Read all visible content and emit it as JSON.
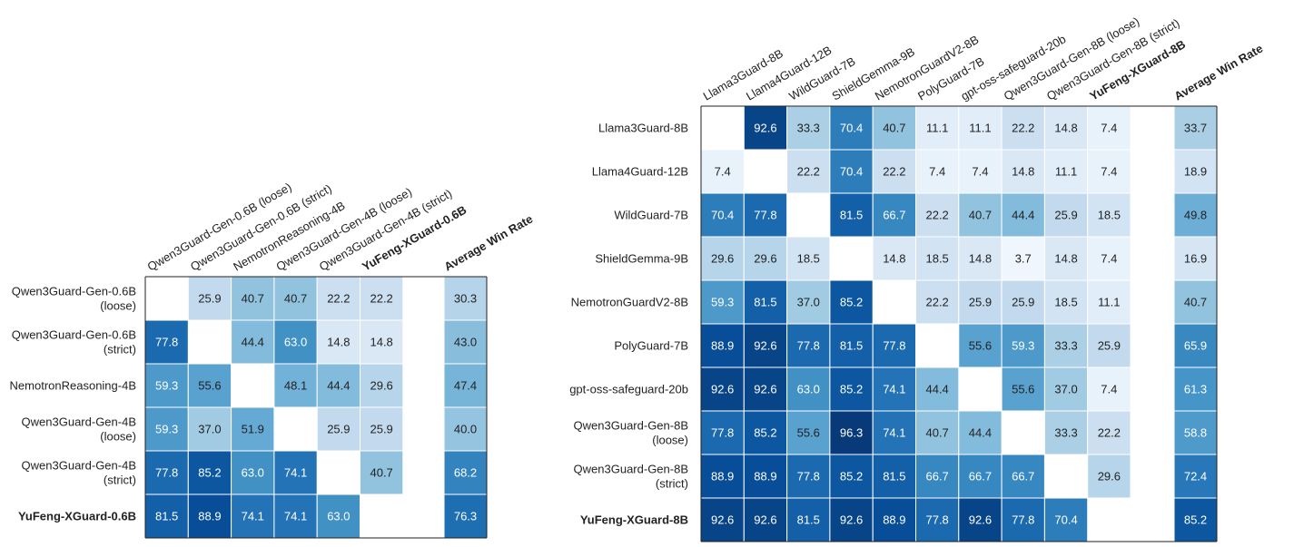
{
  "chart_data": [
    {
      "type": "heatmap",
      "rows": [
        "Qwen3Guard-Gen-0.6B\n(loose)",
        "Qwen3Guard-Gen-0.6B\n(strict)",
        "NemotronReasoning-4B",
        "Qwen3Guard-Gen-4B\n(loose)",
        "Qwen3Guard-Gen-4B\n(strict)",
        "YuFeng-XGuard-0.6B"
      ],
      "columns": [
        "Qwen3Guard-Gen-0.6B (loose)",
        "Qwen3Guard-Gen-0.6B (strict)",
        "NemotronReasoning-4B",
        "Qwen3Guard-Gen-4B (loose)",
        "Qwen3Guard-Gen-4B (strict)",
        "YuFeng-XGuard-0.6B"
      ],
      "bold_label": "YuFeng-XGuard-0.6B",
      "values": [
        [
          null,
          25.9,
          40.7,
          40.7,
          22.2,
          22.2
        ],
        [
          77.8,
          null,
          44.4,
          63.0,
          14.8,
          14.8
        ],
        [
          59.3,
          55.6,
          null,
          48.1,
          44.4,
          29.6
        ],
        [
          59.3,
          37.0,
          51.9,
          null,
          25.9,
          25.9
        ],
        [
          77.8,
          85.2,
          63.0,
          74.1,
          null,
          40.7
        ],
        [
          81.5,
          88.9,
          74.1,
          74.1,
          63.0,
          null
        ]
      ],
      "average_label": "Average Win Rate",
      "average": [
        30.3,
        43.0,
        47.4,
        40.0,
        68.2,
        76.3
      ],
      "colormap": "Blues",
      "range": [
        0,
        100
      ]
    },
    {
      "type": "heatmap",
      "rows": [
        "Llama3Guard-8B",
        "Llama4Guard-12B",
        "WildGuard-7B",
        "ShieldGemma-9B",
        "NemotronGuardV2-8B",
        "PolyGuard-7B",
        "gpt-oss-safeguard-20b",
        "Qwen3Guard-Gen-8B\n(loose)",
        "Qwen3Guard-Gen-8B\n(strict)",
        "YuFeng-XGuard-8B"
      ],
      "columns": [
        "Llama3Guard-8B",
        "Llama4Guard-12B",
        "WildGuard-7B",
        "ShieldGemma-9B",
        "NemotronGuardV2-8B",
        "PolyGuard-7B",
        "gpt-oss-safeguard-20b",
        "Qwen3Guard-Gen-8B (loose)",
        "Qwen3Guard-Gen-8B (strict)",
        "YuFeng-XGuard-8B"
      ],
      "bold_label": "YuFeng-XGuard-8B",
      "values": [
        [
          null,
          92.6,
          33.3,
          70.4,
          40.7,
          11.1,
          11.1,
          22.2,
          14.8,
          7.4
        ],
        [
          7.4,
          null,
          22.2,
          70.4,
          22.2,
          7.4,
          7.4,
          14.8,
          11.1,
          7.4
        ],
        [
          70.4,
          77.8,
          null,
          81.5,
          66.7,
          22.2,
          40.7,
          44.4,
          25.9,
          18.5
        ],
        [
          29.6,
          29.6,
          18.5,
          null,
          14.8,
          18.5,
          14.8,
          3.7,
          14.8,
          7.4
        ],
        [
          59.3,
          81.5,
          37.0,
          85.2,
          null,
          22.2,
          25.9,
          25.9,
          18.5,
          11.1
        ],
        [
          88.9,
          92.6,
          77.8,
          81.5,
          77.8,
          null,
          55.6,
          59.3,
          33.3,
          25.9
        ],
        [
          92.6,
          92.6,
          63.0,
          85.2,
          74.1,
          44.4,
          null,
          55.6,
          37.0,
          7.4
        ],
        [
          77.8,
          85.2,
          55.6,
          96.3,
          74.1,
          40.7,
          44.4,
          null,
          33.3,
          22.2
        ],
        [
          88.9,
          88.9,
          77.8,
          85.2,
          81.5,
          66.7,
          66.7,
          66.7,
          null,
          29.6
        ],
        [
          92.6,
          92.6,
          81.5,
          92.6,
          88.9,
          77.8,
          92.6,
          77.8,
          70.4,
          null
        ]
      ],
      "average_label": "Average Win Rate",
      "average": [
        33.7,
        18.9,
        49.8,
        16.9,
        40.7,
        65.9,
        61.3,
        58.8,
        72.4,
        85.2
      ],
      "colormap": "Blues",
      "range": [
        0,
        100
      ]
    }
  ]
}
